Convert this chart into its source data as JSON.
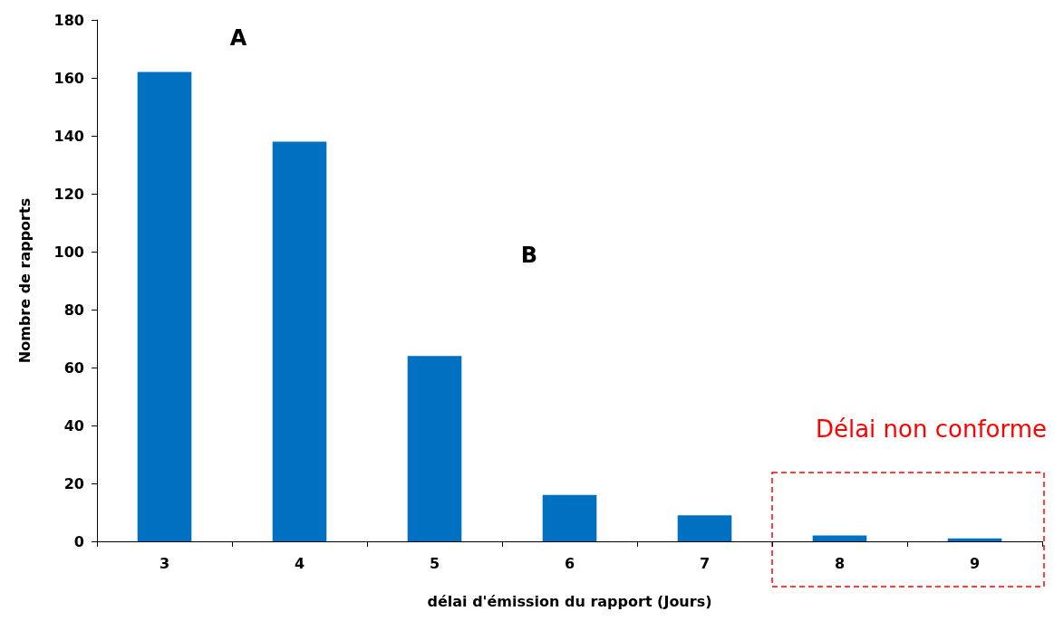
{
  "chart_data": {
    "type": "bar",
    "xlabel": "délai d'émission du rapport (Jours)",
    "ylabel": "Nombre de rapports",
    "categories": [
      "3",
      "4",
      "5",
      "6",
      "7",
      "8",
      "9"
    ],
    "values": [
      162,
      138,
      64,
      16,
      9,
      2,
      1
    ],
    "color": "#0070c0",
    "ylim": [
      0,
      180
    ],
    "yticks": [
      0,
      20,
      40,
      60,
      80,
      100,
      120,
      140,
      160,
      180
    ],
    "grid": false,
    "annotations": [
      "A",
      "B",
      "Délai non conforme"
    ]
  }
}
